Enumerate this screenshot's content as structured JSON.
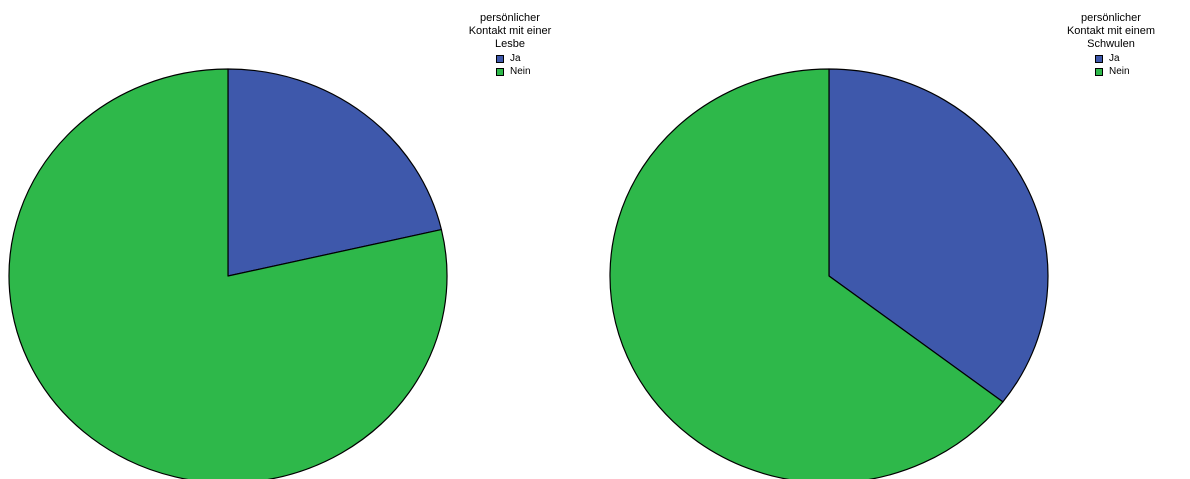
{
  "colors": {
    "ja": "#3e58ab",
    "nein": "#2eb84a",
    "outline": "#000000"
  },
  "chart_data": [
    {
      "type": "pie",
      "title": "",
      "legend_title": "persönlicher\nKontakt mit einer\nLesbe",
      "legend_placement": "top-right",
      "slices": [
        {
          "label": "Ja",
          "value": 21.4
        },
        {
          "label": "Nein",
          "value": 78.6
        }
      ]
    },
    {
      "type": "pie",
      "title": "",
      "legend_title": "persönlicher\nKontakt mit einem\nSchwulen",
      "legend_placement": "top-right",
      "slices": [
        {
          "label": "Ja",
          "value": 35.4
        },
        {
          "label": "Nein",
          "value": 64.6
        }
      ]
    }
  ]
}
